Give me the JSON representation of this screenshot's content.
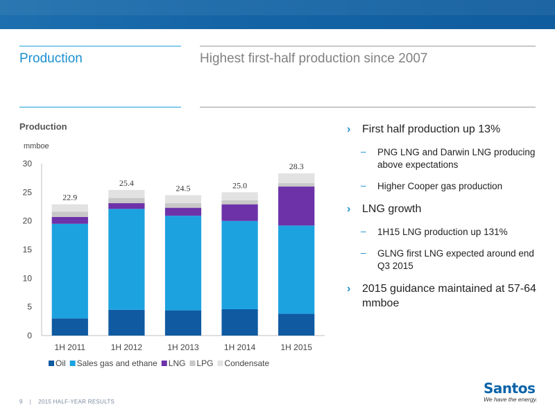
{
  "header": {
    "section_title": "Production",
    "slide_title": "Highest first-half production since 2007"
  },
  "colors": {
    "oil": "#0f5aa1",
    "sales_gas": "#1da2e0",
    "lng": "#6d32a8",
    "lpg": "#c8c8c8",
    "condensate": "#e2e2e2",
    "accent": "#1a8fd0"
  },
  "chart_data": {
    "type": "bar",
    "stacked": true,
    "title": "Production",
    "ylabel": "mmboe",
    "categories": [
      "1H 2011",
      "1H 2012",
      "1H 2013",
      "1H 2014",
      "1H 2015"
    ],
    "series": [
      {
        "name": "Oil",
        "values": [
          3.0,
          4.5,
          4.4,
          4.6,
          3.8
        ]
      },
      {
        "name": "Sales gas and ethane",
        "values": [
          16.5,
          17.6,
          16.5,
          15.4,
          15.4
        ]
      },
      {
        "name": "LNG",
        "values": [
          1.2,
          1.0,
          1.4,
          2.9,
          6.8
        ]
      },
      {
        "name": "LPG",
        "values": [
          0.9,
          0.9,
          0.8,
          0.7,
          0.6
        ]
      },
      {
        "name": "Condensate",
        "values": [
          1.3,
          1.4,
          1.4,
          1.4,
          1.7
        ]
      }
    ],
    "totals": [
      "22.9",
      "25.4",
      "24.5",
      "25.0",
      "28.3"
    ],
    "ylim": [
      0,
      30
    ],
    "yticks": [
      0,
      5,
      10,
      15,
      20,
      25,
      30
    ],
    "grid": false,
    "legend": "bottom"
  },
  "bullets": [
    {
      "level": 1,
      "marker": "›",
      "text": "First half production up 13%"
    },
    {
      "level": 2,
      "marker": "–",
      "text": "PNG LNG and Darwin LNG producing above expectations"
    },
    {
      "level": 2,
      "marker": "–",
      "text": "Higher Cooper gas production"
    },
    {
      "level": 1,
      "marker": "›",
      "text": "LNG growth"
    },
    {
      "level": 2,
      "marker": "–",
      "text": "1H15 LNG production up 131%"
    },
    {
      "level": 2,
      "marker": "–",
      "text": "GLNG first LNG expected around end Q3 2015"
    },
    {
      "level": 1,
      "marker": "›",
      "text": "2015 guidance maintained at 57-64 mmboe"
    }
  ],
  "footer": {
    "page_number": "9",
    "separator": "|",
    "label": "2015 HALF-YEAR RESULTS"
  },
  "logo": {
    "name": "Santos",
    "tagline": "We have the energy."
  }
}
